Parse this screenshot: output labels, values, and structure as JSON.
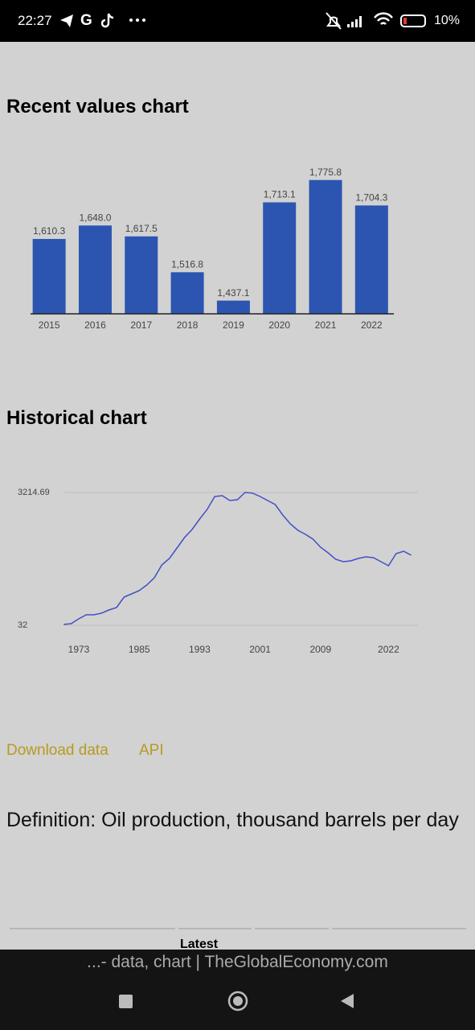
{
  "status_bar": {
    "time": "22:27",
    "app_letter": "G",
    "battery": "10%"
  },
  "recent_heading": "Recent values chart",
  "historical_heading": "Historical chart",
  "chart_data": [
    {
      "type": "bar",
      "categories": [
        "2015",
        "2016",
        "2017",
        "2018",
        "2019",
        "2020",
        "2021",
        "2022"
      ],
      "values": [
        1610.3,
        1648.0,
        1617.5,
        1516.8,
        1437.1,
        1713.1,
        1775.8,
        1704.3
      ],
      "value_labels": [
        "1,610.3",
        "1,648.0",
        "1,617.5",
        "1,516.8",
        "1,437.1",
        "1,713.1",
        "1,775.8",
        "1,704.3"
      ],
      "color": "#2b55b0",
      "ylim": [
        1400,
        1800
      ]
    },
    {
      "type": "line",
      "categories": [
        null,
        null,
        "1973",
        null,
        null,
        null,
        null,
        null,
        null,
        null,
        "1985",
        null,
        null,
        null,
        null,
        null,
        null,
        null,
        "1993",
        null,
        null,
        null,
        null,
        null,
        null,
        null,
        "2001",
        null,
        null,
        null,
        null,
        null,
        null,
        null,
        "2009",
        null,
        null,
        null,
        null,
        null,
        null,
        null,
        null,
        "2022",
        null,
        null,
        null
      ],
      "values": [
        51,
        71,
        186,
        283,
        283,
        321,
        399,
        456,
        707,
        784,
        861,
        996,
        1170,
        1479,
        1633,
        1884,
        2135,
        2328,
        2578,
        2810,
        3118,
        3138,
        3022,
        3041,
        3214.69,
        3200,
        3118,
        3022,
        2926,
        2675,
        2462,
        2308,
        2212,
        2096,
        1903,
        1768,
        1614,
        1556,
        1575,
        1633,
        1672,
        1652,
        1556,
        1459,
        1749,
        1807,
        1710
      ],
      "color": "#4250c4",
      "ylim": [
        32,
        3214.69
      ],
      "yticks": [
        32,
        3214.69
      ],
      "grid": true
    }
  ],
  "links": [
    "Download data",
    "API"
  ],
  "definition": "Definition: Oil production, thousand barrels per day",
  "table_header": "Latest",
  "browser_title": "...- data, chart | TheGlobalEconomy.com"
}
